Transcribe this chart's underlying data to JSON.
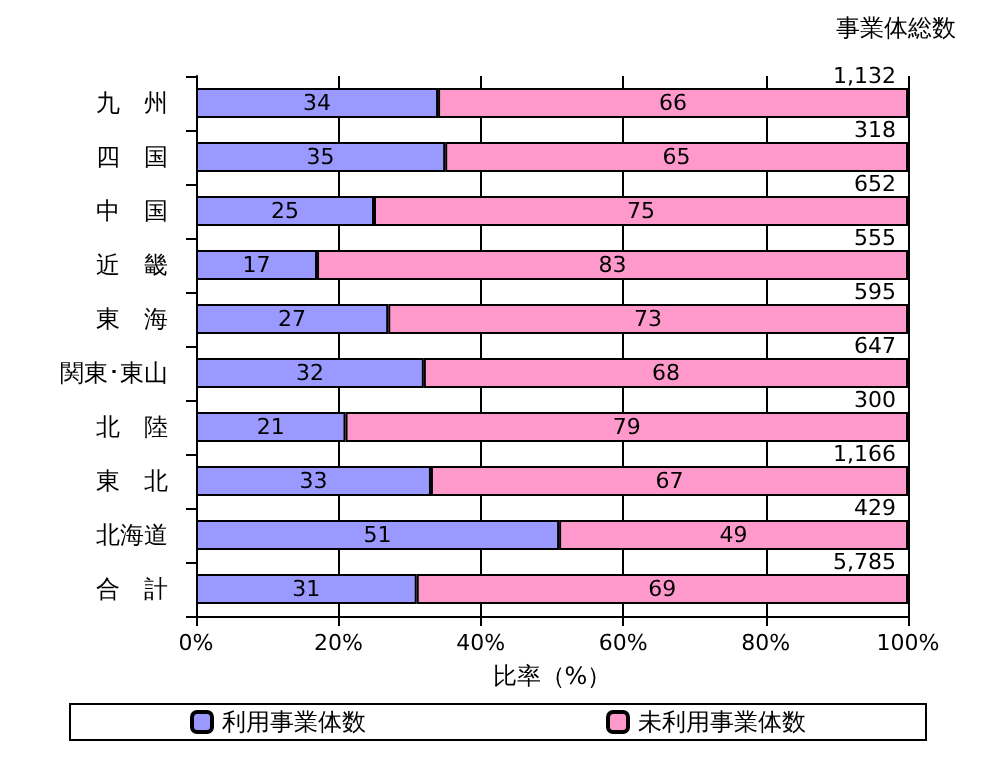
{
  "chart_data": {
    "type": "bar",
    "orientation": "horizontal",
    "stacked": true,
    "xlabel": "比率（%）",
    "categories": [
      "九　州",
      "四　国",
      "中　国",
      "近　畿",
      "東　海",
      "関東･東山",
      "北　陸",
      "東　北",
      "北海道",
      "合　計"
    ],
    "series": [
      {
        "name": "利用事業体数",
        "color": "#9999ff",
        "values": [
          34,
          35,
          25,
          17,
          27,
          32,
          21,
          33,
          51,
          31
        ]
      },
      {
        "name": "未利用事業体数",
        "color": "#ff99cc",
        "values": [
          66,
          65,
          75,
          83,
          73,
          68,
          79,
          67,
          49,
          69
        ]
      }
    ],
    "annotations": [
      "事業体総数",
      {
        "text": "1,132",
        "y": "九　州"
      },
      {
        "text": "318",
        "y": "四　国"
      },
      {
        "text": "652",
        "y": "中　国"
      },
      {
        "text": "555",
        "y": "近　畿"
      },
      {
        "text": "595",
        "y": "東　海"
      },
      {
        "text": "647",
        "y": "関東･東山"
      },
      {
        "text": "300",
        "y": "北　陸"
      },
      {
        "text": "1,166",
        "y": "東　北"
      },
      {
        "text": "429",
        "y": "北海道"
      },
      {
        "text": "5,785",
        "y": "合　計"
      }
    ],
    "xlim": [
      0,
      100
    ],
    "xticks": [
      {
        "value": 0,
        "label": "0%"
      },
      {
        "value": 20,
        "label": "20%"
      },
      {
        "value": 40,
        "label": "40%"
      },
      {
        "value": 60,
        "label": "60%"
      },
      {
        "value": 80,
        "label": "80%"
      },
      {
        "value": 100,
        "label": "100%"
      }
    ],
    "grid": "x",
    "legend": "bottom",
    "data_labels": true
  }
}
